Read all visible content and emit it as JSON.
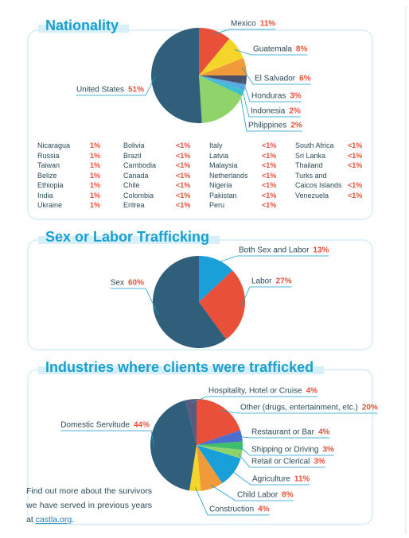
{
  "chart_data": [
    {
      "type": "pie",
      "title": "Nationality",
      "categories": [
        "Mexico",
        "Guatemala",
        "El Salvador",
        "Honduras",
        "Indonesia",
        "Philippines",
        null,
        "United States"
      ],
      "values": [
        11,
        8,
        6,
        3,
        2,
        2,
        17,
        51
      ],
      "value_labels": [
        "11%",
        "8%",
        "6%",
        "3%",
        "2%",
        "2%",
        null,
        "51%"
      ],
      "colors": [
        "#e8503a",
        "#f6d52a",
        "#f09a3a",
        "#4a4f6a",
        "#5aa9e0",
        "#3fc0d0",
        "#8fd36a",
        "#2f5f7a"
      ]
    },
    {
      "type": "pie",
      "title": "Sex or Labor Trafficking",
      "categories": [
        "Both Sex and Labor",
        "Labor",
        "Sex"
      ],
      "values": [
        13,
        27,
        60
      ],
      "value_labels": [
        "13%",
        "27%",
        "60%"
      ],
      "colors": [
        "#1aa0d8",
        "#e8503a",
        "#2f5f7a"
      ]
    },
    {
      "type": "pie",
      "title": "Industries where clients were trafficked",
      "categories": [
        "Other (drugs, entertainment, etc.)",
        "Restaurant or Bar",
        "Shipping or Driving",
        "Retail or Clerical",
        "Agriculture",
        "Child Labor",
        "Construction",
        "Domestic Servitude",
        "Hospitality, Hotel or Cruise"
      ],
      "values": [
        20,
        4,
        3,
        3,
        11,
        8,
        4,
        44,
        4
      ],
      "value_labels": [
        "20%",
        "4%",
        "3%",
        "3%",
        "11%",
        "8%",
        "4%",
        "44%",
        "4%"
      ],
      "colors": [
        "#e8503a",
        "#4a6fd0",
        "#3dbf6a",
        "#8fd36a",
        "#1aa0d8",
        "#f09a3a",
        "#f6d52a",
        "#2f5f7a",
        "#5a5a80"
      ]
    }
  ],
  "nationality_table": {
    "columns": [
      [
        {
          "name": "Nicaragua",
          "share": "1%"
        },
        {
          "name": "Russia",
          "share": "1%"
        },
        {
          "name": "Taiwan",
          "share": "1%"
        },
        {
          "name": "Belize",
          "share": "1%"
        },
        {
          "name": "Ethiopia",
          "share": "1%"
        },
        {
          "name": "India",
          "share": "1%"
        },
        {
          "name": "Ukraine",
          "share": "1%"
        }
      ],
      [
        {
          "name": "Bolivia",
          "share": "<1%"
        },
        {
          "name": "Brazil",
          "share": "<1%"
        },
        {
          "name": "Cambodia",
          "share": "<1%"
        },
        {
          "name": "Canada",
          "share": "<1%"
        },
        {
          "name": "Chile",
          "share": "<1%"
        },
        {
          "name": "Colombia",
          "share": "<1%"
        },
        {
          "name": "Eritrea",
          "share": "<1%"
        }
      ],
      [
        {
          "name": "Italy",
          "share": "<1%"
        },
        {
          "name": "Latvia",
          "share": "<1%"
        },
        {
          "name": "Malaysia",
          "share": "<1%"
        },
        {
          "name": "Netherlands",
          "share": "<1%"
        },
        {
          "name": "Nigeria",
          "share": "<1%"
        },
        {
          "name": "Pakistan",
          "share": "<1%"
        },
        {
          "name": "Peru",
          "share": "<1%"
        }
      ],
      [
        {
          "name": "South Africa",
          "share": "<1%"
        },
        {
          "name": "Sri Lanka",
          "share": "<1%"
        },
        {
          "name": "Thailand",
          "share": "<1%"
        },
        {
          "name": "Turks and Caicos Islands",
          "share": "<1%"
        },
        {
          "name": "Venezuela",
          "share": "<1%"
        }
      ]
    ]
  },
  "footer": {
    "text": "Find out more about the survivors we have served in previous years at ",
    "link": "castla.org",
    "end": "."
  }
}
